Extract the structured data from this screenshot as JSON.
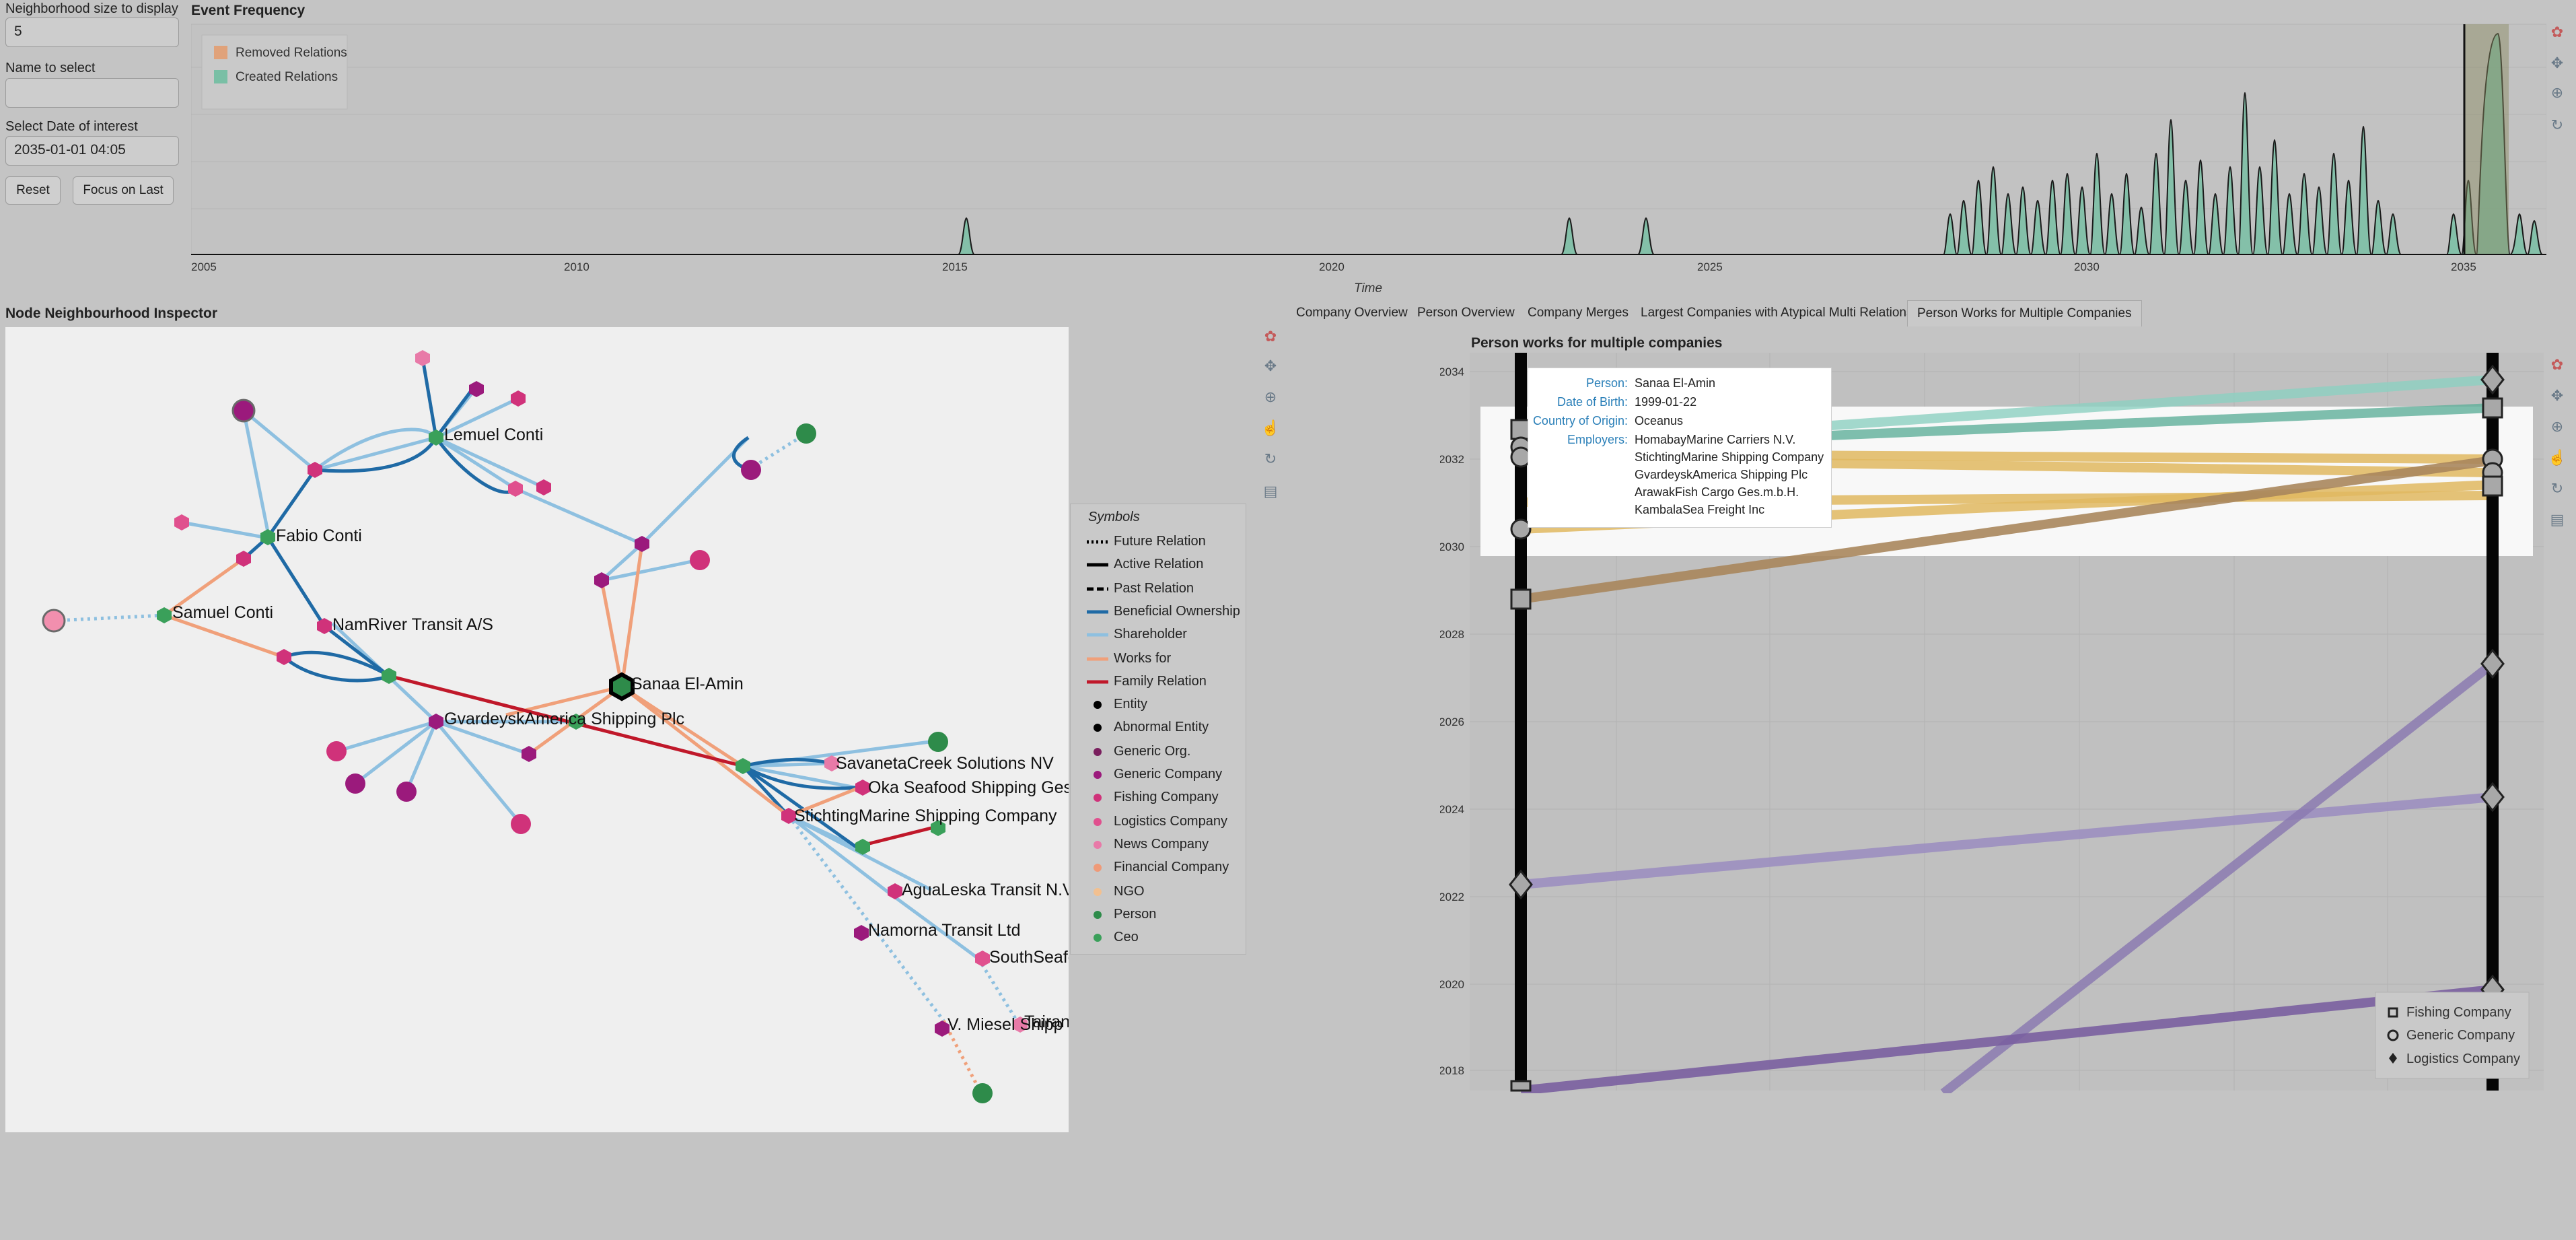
{
  "controls": {
    "neighborhood_label": "Neighborhood size to display",
    "neighborhood_value": "5",
    "name_label": "Name to select",
    "name_value": "",
    "date_label": "Select Date of interest",
    "date_value": "2035-01-01 04:05",
    "reset_label": "Reset",
    "focus_label": "Focus on Last"
  },
  "event_freq": {
    "title": "Event Frequency",
    "legend": [
      "Removed Relations",
      "Created Relations"
    ],
    "xlabel": "Time",
    "ticks": [
      "2005",
      "2010",
      "2015",
      "2020",
      "2025",
      "2030",
      "2035"
    ],
    "colors": {
      "removed": "#e0a27a",
      "created": "#79bfa5"
    }
  },
  "inspector": {
    "title": "Node Neighbourhood Inspector",
    "nodes": [
      "Lemuel Conti",
      "Fabio Conti",
      "Samuel Conti",
      "NamRiver Transit A/S",
      "Sanaa El-Amin",
      "GvardeyskAmerica Shipping Plc",
      "SavanetaCreek Solutions NV",
      "Oka Seafood Shipping Ges.",
      "StichtingMarine Shipping Company",
      "AguaLeska Transit N.V.",
      "Namorna Transit Ltd",
      "SouthSeafo",
      "V. Miesel Shipp",
      "Tairan"
    ]
  },
  "symbols": {
    "title": "Symbols",
    "items": [
      "Future Relation",
      "Active Relation",
      "Past Relation",
      "Beneficial Ownership",
      "Shareholder",
      "Works for",
      "Family Relation",
      "Entity",
      "Abnormal Entity",
      "Generic Org.",
      "Generic Company",
      "Fishing Company",
      "Logistics Company",
      "News Company",
      "Financial Company",
      "NGO",
      "Person",
      "Ceo"
    ],
    "colors": {
      "beneficial": "#1f6aa5",
      "shareholder": "#8ec0e0",
      "works": "#f0a07a",
      "family": "#c0182a",
      "generic_org": "#7a1f5e",
      "generic_company": "#9b1a7c",
      "fishing": "#d0327a",
      "logistics": "#e0508e",
      "news": "#e87aa8",
      "financial": "#ef9a78",
      "ngo": "#f2c090",
      "person": "#2e8b4a",
      "ceo": "#3aa05a"
    }
  },
  "tabs": [
    "Company Overview",
    "Person Overview",
    "Company Merges",
    "Largest Companies with Atypical Multi Relations",
    "Person Works for Multiple Companies"
  ],
  "person_chart": {
    "title": "Person works for multiple companies",
    "yticks": [
      "2034",
      "2032",
      "2030",
      "2028",
      "2026",
      "2024",
      "2022",
      "2020",
      "2018"
    ],
    "legend": [
      "Fishing Company",
      "Generic Company",
      "Logistics Company"
    ]
  },
  "tooltip": {
    "person_label": "Person:",
    "person_value": "Sanaa El-Amin",
    "dob_label": "Date of Birth:",
    "dob_value": "1999-01-22",
    "country_label": "Country of Origin:",
    "country_value": "Oceanus",
    "employers_label": "Employers:",
    "employers": [
      "HomabayMarine Carriers N.V.",
      "StichtingMarine Shipping Company",
      "GvardeyskAmerica Shipping Plc",
      "ArawakFish Cargo Ges.m.b.H.",
      "KambalaSea Freight Inc"
    ]
  }
}
